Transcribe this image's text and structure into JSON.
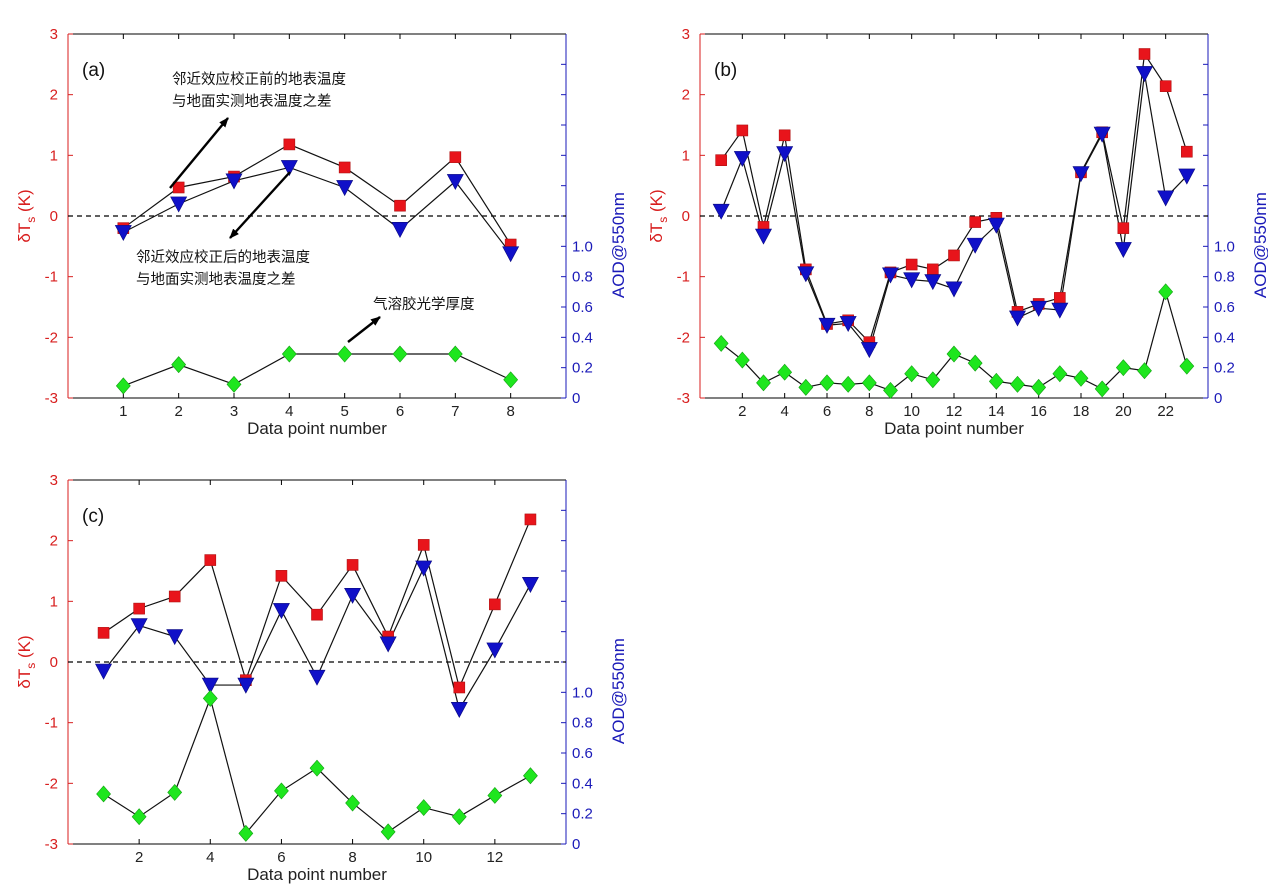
{
  "chart_data": [
    {
      "type": "line",
      "panel_label": "(a)",
      "xlabel": "Data point number",
      "ylabel_left": "δT_s (K)",
      "ylabel_right": "AOD@550nm",
      "xlim": [
        0,
        9
      ],
      "ylim_left": [
        -3,
        3
      ],
      "ylim_right": [
        0,
        2.4
      ],
      "x_ticks": [
        1,
        2,
        3,
        4,
        5,
        6,
        7,
        8
      ],
      "y_left_ticks": [
        -3,
        -2,
        -1,
        0,
        1,
        2,
        3
      ],
      "y_right_ticks": [
        0,
        0.2,
        0.4,
        0.6,
        0.8,
        1.0
      ],
      "y_right_tick_labels": [
        "0",
        "0.2",
        "0.4",
        "0.6",
        "0.8",
        "1.0"
      ],
      "zero_line": 0,
      "x": [
        1,
        2,
        3,
        4,
        5,
        6,
        7,
        8
      ],
      "series": [
        {
          "marker": "square",
          "color": "#e8141b",
          "axis": "left",
          "values": [
            -0.2,
            0.47,
            0.65,
            1.18,
            0.8,
            0.17,
            0.97,
            -0.47
          ]
        },
        {
          "marker": "triangle-down",
          "color": "#1010c8",
          "axis": "left",
          "values": [
            -0.27,
            0.2,
            0.58,
            0.8,
            0.47,
            -0.22,
            0.57,
            -0.62
          ]
        },
        {
          "marker": "diamond",
          "color": "#1ee61e",
          "axis": "right",
          "values": [
            0.08,
            0.22,
            0.09,
            0.29,
            0.29,
            0.29,
            0.29,
            0.12
          ]
        }
      ],
      "annotations": [
        {
          "lines": [
            "邻近效应校正前的地表温度",
            "与地面实测地表温度之差"
          ]
        },
        {
          "lines": [
            "邻近效应校正后的地表温度",
            "与地面实测地表温度之差"
          ]
        },
        {
          "lines": [
            "气溶胶光学厚度"
          ]
        }
      ]
    },
    {
      "type": "line",
      "panel_label": "(b)",
      "xlabel": "Data point number",
      "ylabel_left": "δT_s (K)",
      "ylabel_right": "AOD@550nm",
      "xlim": [
        0,
        24
      ],
      "ylim_left": [
        -3,
        3
      ],
      "ylim_right": [
        0,
        2.4
      ],
      "x_ticks": [
        2,
        4,
        6,
        8,
        10,
        12,
        14,
        16,
        18,
        20,
        22
      ],
      "y_left_ticks": [
        -3,
        -2,
        -1,
        0,
        1,
        2,
        3
      ],
      "y_right_ticks": [
        0,
        0.2,
        0.4,
        0.6,
        0.8,
        1.0
      ],
      "y_right_tick_labels": [
        "0",
        "0.2",
        "0.4",
        "0.6",
        "0.8",
        "1.0"
      ],
      "zero_line": 0,
      "x": [
        1,
        2,
        3,
        4,
        5,
        6,
        7,
        8,
        9,
        10,
        11,
        12,
        13,
        14,
        15,
        16,
        17,
        18,
        19,
        20,
        21,
        22,
        23
      ],
      "series": [
        {
          "marker": "square",
          "color": "#e8141b",
          "axis": "left",
          "values": [
            0.92,
            1.41,
            -0.18,
            1.33,
            -0.88,
            -1.78,
            -1.72,
            -2.08,
            -0.93,
            -0.8,
            -0.88,
            -0.65,
            -0.1,
            -0.03,
            -1.58,
            -1.45,
            -1.35,
            0.72,
            1.38,
            -0.2,
            2.67,
            2.14,
            1.06
          ]
        },
        {
          "marker": "triangle-down",
          "color": "#1010c8",
          "axis": "left",
          "values": [
            0.08,
            0.95,
            -0.33,
            1.03,
            -0.95,
            -1.8,
            -1.77,
            -2.2,
            -0.97,
            -1.05,
            -1.08,
            -1.2,
            -0.48,
            -0.15,
            -1.68,
            -1.52,
            -1.55,
            0.7,
            1.35,
            -0.55,
            2.35,
            0.3,
            0.66
          ]
        },
        {
          "marker": "diamond",
          "color": "#1ee61e",
          "axis": "right",
          "values": [
            0.36,
            0.25,
            0.1,
            0.17,
            0.07,
            0.1,
            0.09,
            0.1,
            0.05,
            0.16,
            0.12,
            0.29,
            0.23,
            0.11,
            0.09,
            0.07,
            0.16,
            0.13,
            0.06,
            0.2,
            0.18,
            0.7,
            0.21
          ]
        }
      ]
    },
    {
      "type": "line",
      "panel_label": "(c)",
      "xlabel": "Data point number",
      "ylabel_left": "δT_s (K)",
      "ylabel_right": "AOD@550nm",
      "xlim": [
        0,
        14
      ],
      "ylim_left": [
        -3,
        3
      ],
      "ylim_right": [
        0,
        2.4
      ],
      "x_ticks": [
        2,
        4,
        6,
        8,
        10,
        12
      ],
      "y_left_ticks": [
        -3,
        -2,
        -1,
        0,
        1,
        2,
        3
      ],
      "y_right_ticks": [
        0,
        0.2,
        0.4,
        0.6,
        0.8,
        1.0
      ],
      "y_right_tick_labels": [
        "0",
        "0.2",
        "0.4",
        "0.6",
        "0.8",
        "1.0"
      ],
      "zero_line": 0,
      "x": [
        1,
        2,
        3,
        4,
        5,
        6,
        7,
        8,
        9,
        10,
        11,
        12,
        13
      ],
      "series": [
        {
          "marker": "square",
          "color": "#e8141b",
          "axis": "left",
          "values": [
            0.48,
            0.88,
            1.08,
            1.68,
            -0.3,
            1.42,
            0.78,
            1.6,
            0.42,
            1.93,
            -0.42,
            0.95,
            2.35
          ]
        },
        {
          "marker": "triangle-down",
          "color": "#1010c8",
          "axis": "left",
          "values": [
            -0.15,
            0.6,
            0.42,
            -0.38,
            -0.38,
            0.85,
            -0.25,
            1.1,
            0.3,
            1.55,
            -0.78,
            0.2,
            1.28
          ]
        },
        {
          "marker": "diamond",
          "color": "#1ee61e",
          "axis": "right",
          "values": [
            0.33,
            0.18,
            0.34,
            0.96,
            0.07,
            0.35,
            0.5,
            0.27,
            0.08,
            0.24,
            0.18,
            0.32,
            0.45
          ]
        }
      ]
    }
  ]
}
